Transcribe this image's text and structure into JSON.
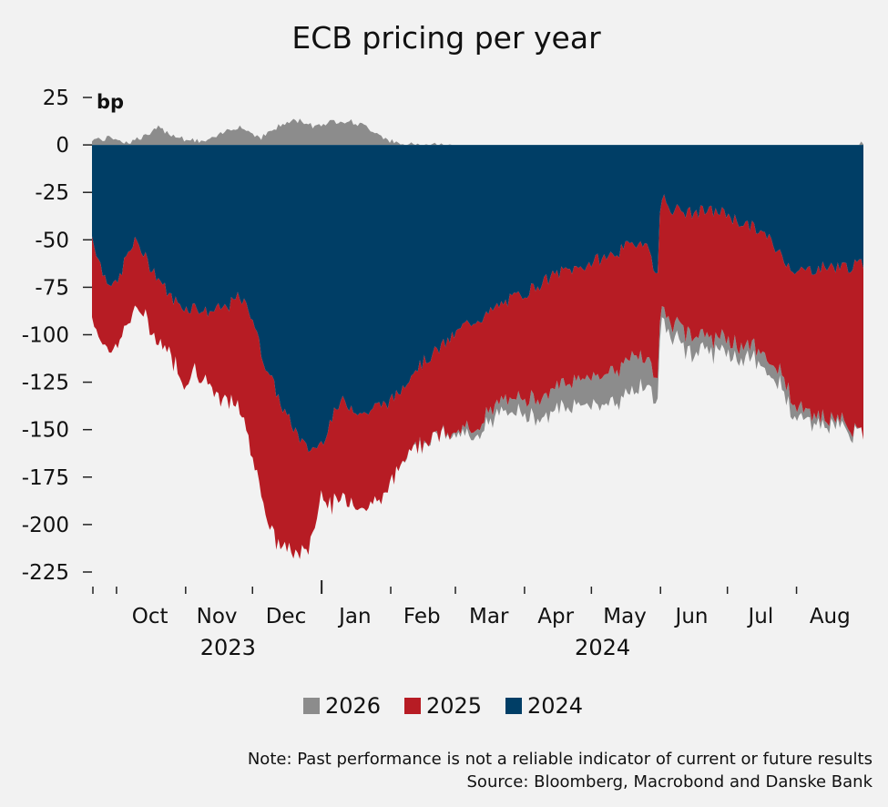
{
  "chart_data": {
    "type": "area",
    "title": "ECB pricing per year",
    "ylabel": "bp",
    "ylim": [
      -225,
      25
    ],
    "yticks": [
      25,
      0,
      -25,
      -50,
      -75,
      -100,
      -125,
      -150,
      -175,
      -200,
      -225
    ],
    "x_range": [
      "2023-09-20",
      "2024-08-31"
    ],
    "month_labels": [
      "Oct",
      "Nov",
      "Dec",
      "Jan",
      "Feb",
      "Mar",
      "Apr",
      "May",
      "Jun",
      "Jul",
      "Aug"
    ],
    "month_label_dates": [
      "2023-10-16",
      "2023-11-15",
      "2023-12-16",
      "2024-01-16",
      "2024-02-15",
      "2024-03-16",
      "2024-04-15",
      "2024-05-16",
      "2024-06-15",
      "2024-07-16",
      "2024-08-16"
    ],
    "month_tick_dates": [
      "2023-10-01",
      "2023-11-01",
      "2023-12-01",
      "2024-01-01",
      "2024-02-01",
      "2024-03-01",
      "2024-04-01",
      "2024-05-01",
      "2024-06-01",
      "2024-07-01",
      "2024-08-01"
    ],
    "year_labels": [
      {
        "label": "2023",
        "date": "2023-11-20"
      },
      {
        "label": "2024",
        "date": "2024-05-06"
      }
    ],
    "legend_position": "bottom-center",
    "grid": false,
    "dates": [
      "2023-09-20",
      "2023-09-25",
      "2023-10-01",
      "2023-10-05",
      "2023-10-10",
      "2023-10-15",
      "2023-10-20",
      "2023-10-25",
      "2023-11-01",
      "2023-11-05",
      "2023-11-10",
      "2023-11-15",
      "2023-11-20",
      "2023-11-25",
      "2023-12-01",
      "2023-12-05",
      "2023-12-10",
      "2023-12-15",
      "2023-12-20",
      "2023-12-25",
      "2023-12-28",
      "2024-01-01",
      "2024-01-05",
      "2024-01-10",
      "2024-01-15",
      "2024-01-20",
      "2024-01-25",
      "2024-02-01",
      "2024-02-05",
      "2024-02-10",
      "2024-02-15",
      "2024-02-20",
      "2024-02-25",
      "2024-03-01",
      "2024-03-05",
      "2024-03-10",
      "2024-03-15",
      "2024-03-20",
      "2024-03-25",
      "2024-04-01",
      "2024-04-05",
      "2024-04-10",
      "2024-04-15",
      "2024-04-20",
      "2024-04-25",
      "2024-05-01",
      "2024-05-05",
      "2024-05-10",
      "2024-05-15",
      "2024-05-20",
      "2024-05-25",
      "2024-05-31",
      "2024-06-01",
      "2024-06-05",
      "2024-06-10",
      "2024-06-15",
      "2024-06-20",
      "2024-06-25",
      "2024-07-01",
      "2024-07-05",
      "2024-07-10",
      "2024-07-15",
      "2024-07-20",
      "2024-07-25",
      "2024-08-01",
      "2024-08-05",
      "2024-08-10",
      "2024-08-15",
      "2024-08-20",
      "2024-08-25",
      "2024-08-31"
    ],
    "series": [
      {
        "name": "2026",
        "color": "#8c8c8c",
        "values": [
          3,
          3,
          4,
          1,
          3,
          5,
          9,
          6,
          3,
          2,
          2,
          4,
          8,
          10,
          6,
          4,
          8,
          11,
          13,
          12,
          10,
          11,
          12,
          13,
          12,
          10,
          7,
          2,
          0,
          0,
          0,
          0,
          0,
          -2,
          -3,
          -3,
          -5,
          -6,
          -7,
          -8,
          -10,
          -11,
          -12,
          -13,
          -14,
          -15,
          -15,
          -16,
          -17,
          -20,
          -14,
          -12,
          -7,
          -7,
          -9,
          -10,
          -8,
          -7,
          -7,
          -7,
          -7,
          -7,
          -7,
          -7,
          -6,
          -5,
          -4,
          -4,
          -3,
          -3,
          1
        ]
      },
      {
        "name": "2025",
        "color": "#b71c24",
        "values": [
          -43,
          -37,
          -33,
          -36,
          -35,
          -32,
          -33,
          -30,
          -40,
          -32,
          -36,
          -48,
          -50,
          -58,
          -72,
          -73,
          -82,
          -72,
          -65,
          -55,
          -45,
          -25,
          -45,
          -52,
          -48,
          -50,
          -50,
          -45,
          -39,
          -38,
          -42,
          -43,
          -48,
          -52,
          -56,
          -55,
          -53,
          -52,
          -53,
          -55,
          -57,
          -60,
          -60,
          -60,
          -58,
          -60,
          -62,
          -60,
          -62,
          -58,
          -61,
          -55,
          -58,
          -60,
          -62,
          -63,
          -65,
          -67,
          -67,
          -65,
          -63,
          -63,
          -67,
          -60,
          -72,
          -75,
          -75,
          -82,
          -80,
          -85,
          -91
        ]
      },
      {
        "name": "2024",
        "color": "#003e66",
        "values": [
          -48,
          -68,
          -75,
          -60,
          -50,
          -62,
          -70,
          -80,
          -86,
          -85,
          -88,
          -87,
          -85,
          -80,
          -90,
          -110,
          -125,
          -140,
          -150,
          -160,
          -160,
          -157,
          -145,
          -135,
          -138,
          -142,
          -138,
          -135,
          -130,
          -120,
          -115,
          -110,
          -105,
          -100,
          -95,
          -92,
          -90,
          -85,
          -82,
          -78,
          -75,
          -72,
          -68,
          -66,
          -65,
          -62,
          -60,
          -58,
          -55,
          -52,
          -50,
          -70,
          -25,
          -33,
          -35,
          -36,
          -35,
          -35,
          -36,
          -40,
          -42,
          -45,
          -50,
          -58,
          -67,
          -66,
          -65,
          -64,
          -64,
          -64,
          -63
        ]
      }
    ],
    "notes": [
      "Note: Past performance is not a reliable indicator of current or future results",
      "Source: Bloomberg, Macrobond and Danske Bank"
    ]
  }
}
